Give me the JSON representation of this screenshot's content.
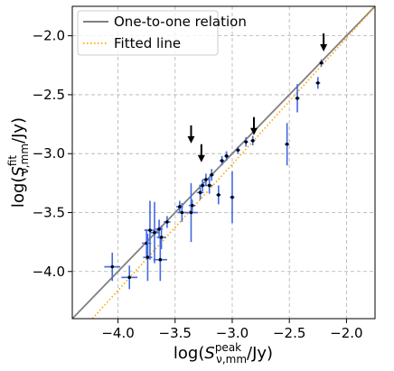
{
  "chart_data": {
    "type": "scatter",
    "xlabel": "log(S^peak_ν,mm/Jy)",
    "ylabel": "log(S^fit_ν,mm/Jy)",
    "xlim": [
      -4.4,
      -1.75
    ],
    "ylim": [
      -4.4,
      -1.75
    ],
    "x_ticks": [
      -4.0,
      -3.5,
      -3.0,
      -2.5,
      -2.0
    ],
    "x_tick_labels": [
      "−4.0",
      "−3.5",
      "−3.0",
      "−2.5",
      "−2.0"
    ],
    "y_ticks": [
      -4.0,
      -3.5,
      -3.0,
      -2.5,
      -2.0
    ],
    "y_tick_labels": [
      "−4.0",
      "−3.5",
      "−3.0",
      "−2.5",
      "−2.0"
    ],
    "grid": true,
    "legend_position": "top-left",
    "legend": [
      {
        "label": "One-to-one relation",
        "style": "solid",
        "color": "#808080"
      },
      {
        "label": "Fitted line",
        "style": "dotted",
        "color": "#ffa500"
      }
    ],
    "series": [
      {
        "kind": "line",
        "legend": "One-to-one relation",
        "slope": 1.0,
        "intercept": 0.0,
        "color": "#808080"
      },
      {
        "kind": "line",
        "legend": "Fitted line",
        "slope": 1.07,
        "intercept": 0.12,
        "color": "#ffa500"
      },
      {
        "kind": "points",
        "marker_color": "#000000",
        "error_color": "#4169e1",
        "points": [
          {
            "x": -4.05,
            "y": -3.96,
            "xerr": 0.07,
            "yerr": 0.12
          },
          {
            "x": -3.9,
            "y": -4.05,
            "xerr": 0.07,
            "yerr": 0.1
          },
          {
            "x": -3.75,
            "y": -3.76,
            "xerr": 0.04,
            "yerr": 0.12
          },
          {
            "x": -3.74,
            "y": -3.88,
            "xerr": 0.04,
            "yerr": 0.2
          },
          {
            "x": -3.72,
            "y": -3.65,
            "xerr": 0.05,
            "yerr": 0.25
          },
          {
            "x": -3.68,
            "y": -3.67,
            "xerr": 0.04,
            "yerr": 0.26
          },
          {
            "x": -3.64,
            "y": -3.64,
            "xerr": 0.03,
            "yerr": 0.08
          },
          {
            "x": -3.63,
            "y": -3.9,
            "xerr": 0.06,
            "yerr": 0.18
          },
          {
            "x": -3.62,
            "y": -3.71,
            "xerr": 0.04,
            "yerr": 0.1
          },
          {
            "x": -3.57,
            "y": -3.58,
            "xerr": 0.03,
            "yerr": 0.05
          },
          {
            "x": -3.46,
            "y": -3.45,
            "xerr": 0.03,
            "yerr": 0.05
          },
          {
            "x": -3.44,
            "y": -3.5,
            "xerr": 0.04,
            "yerr": 0.08
          },
          {
            "x": -3.36,
            "y": -3.5,
            "xerr": 0.06,
            "yerr": 0.25
          },
          {
            "x": -3.35,
            "y": -3.44,
            "xerr": 0.03,
            "yerr": 0.05
          },
          {
            "x": -3.28,
            "y": -3.33,
            "xerr": 0.03,
            "yerr": 0.06
          },
          {
            "x": -3.26,
            "y": -3.27,
            "xerr": 0.03,
            "yerr": 0.05
          },
          {
            "x": -3.23,
            "y": -3.22,
            "xerr": 0.03,
            "yerr": 0.05
          },
          {
            "x": -3.2,
            "y": -3.27,
            "xerr": 0.03,
            "yerr": 0.07
          },
          {
            "x": -3.18,
            "y": -3.18,
            "xerr": 0.02,
            "yerr": 0.05
          },
          {
            "x": -3.12,
            "y": -3.35,
            "xerr": 0.02,
            "yerr": 0.08
          },
          {
            "x": -3.09,
            "y": -3.06,
            "xerr": 0.02,
            "yerr": 0.04
          },
          {
            "x": -3.05,
            "y": -3.02,
            "xerr": 0.02,
            "yerr": 0.04
          },
          {
            "x": -3.0,
            "y": -3.37,
            "xerr": 0.02,
            "yerr": 0.22
          },
          {
            "x": -2.95,
            "y": -2.97,
            "xerr": 0.02,
            "yerr": 0.03
          },
          {
            "x": -2.88,
            "y": -2.9,
            "xerr": 0.02,
            "yerr": 0.04
          },
          {
            "x": -2.82,
            "y": -2.89,
            "xerr": 0.02,
            "yerr": 0.04
          },
          {
            "x": -2.52,
            "y": -2.92,
            "xerr": 0.02,
            "yerr": 0.18
          },
          {
            "x": -2.43,
            "y": -2.53,
            "xerr": 0.02,
            "yerr": 0.12
          },
          {
            "x": -2.25,
            "y": -2.4,
            "xerr": 0.02,
            "yerr": 0.05
          },
          {
            "x": -2.22,
            "y": -2.23,
            "xerr": 0.02,
            "yerr": 0.03
          }
        ]
      },
      {
        "kind": "upper_limits",
        "color": "#000000",
        "points": [
          {
            "x": -3.36,
            "y": -2.76
          },
          {
            "x": -3.27,
            "y": -2.92
          },
          {
            "x": -2.81,
            "y": -2.69
          },
          {
            "x": -2.2,
            "y": -1.98
          }
        ]
      }
    ]
  }
}
